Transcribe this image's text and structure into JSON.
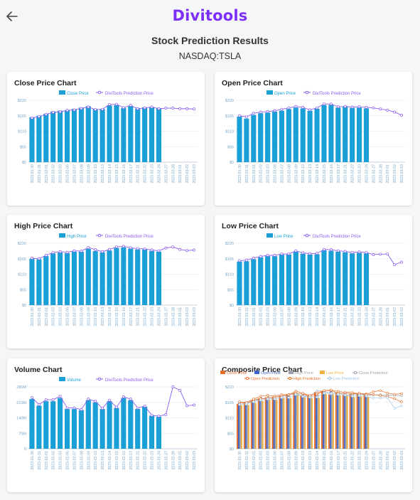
{
  "header": {
    "back_icon": "arrow-left-icon",
    "logo_text": "Divitools",
    "title": "Stock Prediction Results",
    "ticker": "NASDAQ:TSLA"
  },
  "colors": {
    "bar": "#1a9fd6",
    "prediction": "#8a5cf0",
    "open": "#3f63c9",
    "high": "#9aa3ad",
    "low": "#f0b042",
    "close": "#e76f2a",
    "axis": "#7aa6c6",
    "logo": "#7b2ff7"
  },
  "dates": [
    "2023-01-30",
    "2023-01-31",
    "2023-02-01",
    "2023-02-02",
    "2023-02-03",
    "2023-02-06",
    "2023-02-07",
    "2023-02-08",
    "2023-02-09",
    "2023-02-10",
    "2023-02-13",
    "2023-02-14",
    "2023-02-15",
    "2023-02-16",
    "2023-02-17",
    "2023-02-21",
    "2023-02-22",
    "2023-02-23",
    "2023-02-24",
    "2023-02-27",
    "2023-02-28",
    "2023-03-01",
    "2023-03-02",
    "2023-03-03"
  ],
  "chart_data": [
    {
      "id": "close",
      "type": "bar",
      "title": "Close Price Chart",
      "legend": [
        "Close Price",
        "DiviTools Prediction Price"
      ],
      "ytick_labels": [
        "$0",
        "$55",
        "$110",
        "$165",
        "$220"
      ],
      "ylim": [
        0,
        220
      ],
      "bars": [
        160,
        165,
        172,
        180,
        183,
        185,
        189,
        194,
        199,
        189,
        189,
        202,
        203,
        193,
        199,
        190,
        195,
        196,
        191
      ],
      "prediction": [
        157,
        162,
        170,
        177,
        179,
        184,
        186,
        191,
        196,
        187,
        188,
        205,
        206,
        194,
        202,
        190,
        193,
        196,
        190,
        192,
        192,
        190,
        190,
        189
      ]
    },
    {
      "id": "open",
      "type": "bar",
      "title": "Open Price Chart",
      "legend": [
        "Open Price",
        "DiviTools Prediction Price"
      ],
      "ytick_labels": [
        "$0",
        "$55",
        "$110",
        "$165",
        "$220"
      ],
      "ylim": [
        0,
        220
      ],
      "bars": [
        162,
        155,
        168,
        174,
        176,
        180,
        183,
        189,
        194,
        191,
        183,
        190,
        203,
        204,
        194,
        199,
        193,
        194,
        191
      ],
      "prediction": [
        165,
        161,
        174,
        178,
        180,
        183,
        188,
        193,
        198,
        195,
        186,
        193,
        207,
        207,
        197,
        198,
        196,
        197,
        195,
        193,
        189,
        185,
        178,
        167
      ]
    },
    {
      "id": "high",
      "type": "bar",
      "title": "High Price Chart",
      "legend": [
        "High Price",
        "DiviTools Prediction Price"
      ],
      "ytick_labels": [
        "$0",
        "$55",
        "$110",
        "$165",
        "$220"
      ],
      "ylim": [
        0,
        220
      ],
      "bars": [
        165,
        163,
        175,
        184,
        187,
        185,
        190,
        190,
        200,
        192,
        188,
        194,
        203,
        205,
        201,
        198,
        198,
        193,
        190
      ],
      "prediction": [
        167,
        165,
        177,
        187,
        190,
        188,
        193,
        192,
        205,
        197,
        190,
        198,
        207,
        209,
        204,
        201,
        200,
        196,
        193,
        203,
        207,
        198,
        194,
        196
      ]
    },
    {
      "id": "low",
      "type": "bar",
      "title": "Low Price Chart",
      "legend": [
        "Low Price",
        "DiviTools Prediction Price"
      ],
      "ytick_labels": [
        "$0",
        "$55",
        "$110",
        "$165",
        "$220"
      ],
      "ylim": [
        0,
        220
      ],
      "bars": [
        155,
        156,
        163,
        170,
        174,
        174,
        180,
        180,
        190,
        183,
        180,
        181,
        195,
        193,
        190,
        188,
        184,
        186,
        184
      ],
      "prediction": [
        158,
        160,
        167,
        173,
        177,
        177,
        182,
        182,
        193,
        186,
        183,
        184,
        198,
        197,
        193,
        191,
        187,
        189,
        187,
        180,
        181,
        182,
        144,
        153
      ]
    },
    {
      "id": "volume",
      "type": "bar",
      "title": "Volume Chart",
      "legend": [
        "Volume",
        "DiviTools Prediction Price"
      ],
      "ytick_labels": [
        "0",
        "70M",
        "140M",
        "210M",
        "280M"
      ],
      "ylim": [
        0,
        280
      ],
      "bars": [
        225,
        195,
        215,
        215,
        230,
        180,
        180,
        175,
        220,
        210,
        180,
        215,
        185,
        230,
        220,
        180,
        190,
        150,
        145
      ],
      "prediction": [
        232,
        200,
        222,
        222,
        238,
        185,
        185,
        178,
        225,
        215,
        183,
        220,
        188,
        235,
        225,
        185,
        193,
        152,
        148,
        155,
        280,
        265,
        195,
        198
      ]
    },
    {
      "id": "composite",
      "type": "bar",
      "title": "Composite Price Chart",
      "legend": [
        "Close Price",
        "Open Price",
        "High Price",
        "Low Price",
        "Close Prediction",
        "Open Prediction",
        "High Prediction",
        "Low Prediction"
      ],
      "ytick_labels": [
        "$0",
        "$55",
        "$110",
        "$165",
        "$220"
      ],
      "ylim": [
        0,
        220
      ],
      "series": [
        {
          "name": "Close Price",
          "values": [
            160,
            165,
            172,
            180,
            183,
            185,
            189,
            194,
            199,
            189,
            189,
            202,
            203,
            193,
            199,
            190,
            195,
            196,
            191
          ]
        },
        {
          "name": "Open Price",
          "values": [
            162,
            155,
            168,
            174,
            176,
            180,
            183,
            189,
            194,
            191,
            183,
            190,
            203,
            204,
            194,
            199,
            193,
            194,
            191
          ]
        },
        {
          "name": "High Price",
          "values": [
            165,
            163,
            175,
            184,
            187,
            185,
            190,
            190,
            200,
            192,
            188,
            194,
            203,
            205,
            201,
            198,
            198,
            193,
            190
          ]
        },
        {
          "name": "Low Price",
          "values": [
            155,
            156,
            163,
            170,
            174,
            174,
            180,
            180,
            190,
            183,
            180,
            181,
            195,
            193,
            190,
            188,
            184,
            186,
            184
          ]
        },
        {
          "name": "Close Prediction",
          "values": [
            157,
            162,
            170,
            177,
            179,
            184,
            186,
            191,
            196,
            187,
            188,
            205,
            206,
            194,
            202,
            190,
            193,
            196,
            190,
            192,
            192,
            190,
            190,
            189
          ]
        },
        {
          "name": "Open Prediction",
          "values": [
            165,
            161,
            174,
            178,
            180,
            183,
            188,
            193,
            198,
            195,
            186,
            193,
            207,
            207,
            197,
            198,
            196,
            197,
            195,
            193,
            189,
            185,
            178,
            167
          ]
        },
        {
          "name": "High Prediction",
          "values": [
            167,
            165,
            177,
            187,
            190,
            188,
            193,
            192,
            205,
            197,
            190,
            198,
            207,
            209,
            204,
            201,
            200,
            196,
            193,
            203,
            207,
            198,
            194,
            196
          ]
        },
        {
          "name": "Low Prediction",
          "values": [
            158,
            160,
            167,
            173,
            177,
            177,
            182,
            182,
            193,
            186,
            183,
            184,
            198,
            197,
            193,
            191,
            187,
            189,
            187,
            180,
            181,
            182,
            144,
            153
          ]
        }
      ]
    }
  ]
}
